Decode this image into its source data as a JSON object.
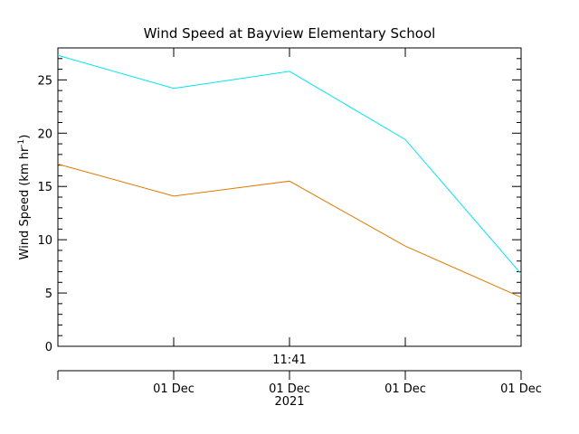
{
  "chart_data": {
    "type": "line",
    "title": "Wind Speed at Bayview Elementary School",
    "ylabel_main": "Wind Speed (km hr",
    "ylabel_sup": "-1",
    "ylabel_close": ")",
    "ylim": [
      0,
      28
    ],
    "yticks": [
      0,
      5,
      10,
      15,
      20,
      25
    ],
    "x": [
      0,
      1,
      2,
      3,
      4
    ],
    "xlim": [
      0,
      4
    ],
    "xtick_labels": [
      {
        "x": 1,
        "label": "01 Dec"
      },
      {
        "x": 2,
        "label": "01 Dec"
      },
      {
        "x": 3,
        "label": "01 Dec"
      },
      {
        "x": 4,
        "label": "01 Dec"
      }
    ],
    "upper_axis_label": {
      "x": 2,
      "label": "11:41"
    },
    "year_label": {
      "x": 2,
      "label": "2021"
    },
    "series": [
      {
        "color": "#00e5ee",
        "values": [
          27.3,
          24.2,
          25.8,
          19.4,
          6.8
        ]
      },
      {
        "color": "#e07800",
        "values": [
          17.1,
          14.1,
          15.5,
          9.4,
          4.6
        ]
      }
    ],
    "grid": false
  }
}
